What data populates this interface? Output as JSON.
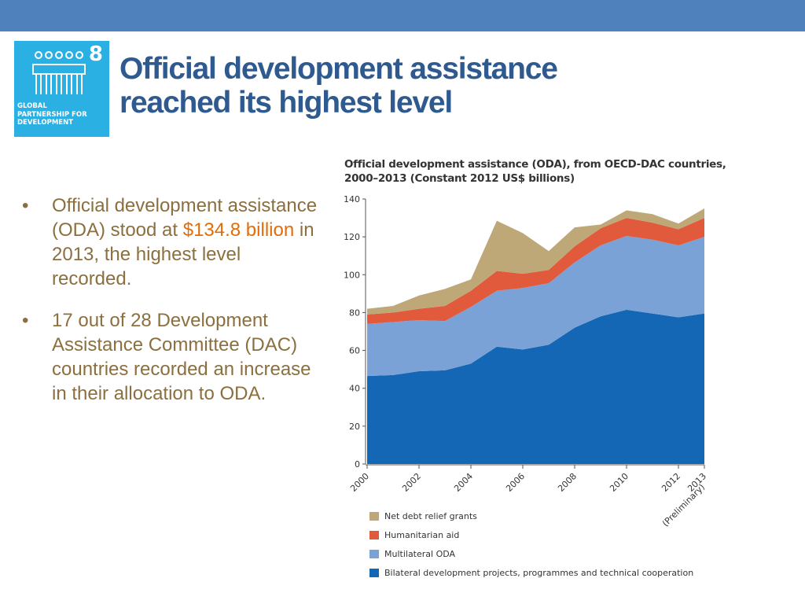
{
  "slide": {
    "goal": {
      "number": "8",
      "text": "GLOBAL\nPARTNERSHIP FOR\nDEVELOPMENT"
    },
    "title": "Official development assistance reached its highest level",
    "bullets": [
      {
        "before": "Official development assistance (ODA) stood at ",
        "highlight": "$134.8 billion",
        "after": " in 2013, the highest level recorded."
      },
      {
        "text": "17 out of 28 Development Assistance Committee (DAC) countries recorded an increase in their allocation to ODA."
      }
    ],
    "bullet_glyph": "•"
  },
  "colors": {
    "topbar": "#4f81bd",
    "title": "#2e5a8f",
    "body_text": "#8b6f3f",
    "highlight": "#e36c0a",
    "logo_bg": "#2bb0e3"
  },
  "chart_data": {
    "type": "area",
    "stacked": true,
    "title": "Official development assistance (ODA), from OECD-DAC countries,\n2000–2013 (Constant 2012 US$ billions)",
    "x": [
      2000,
      2001,
      2002,
      2003,
      2004,
      2005,
      2006,
      2007,
      2008,
      2009,
      2010,
      2011,
      2012,
      2013
    ],
    "x_tick_labels": [
      "2000",
      "2002",
      "2004",
      "2006",
      "2008",
      "2010",
      "2012",
      "2013"
    ],
    "x_tick_values": [
      2000,
      2002,
      2004,
      2006,
      2008,
      2010,
      2012,
      2013
    ],
    "x_note": "(Preliminary)",
    "ylim": [
      0,
      140
    ],
    "y_ticks": [
      0,
      20,
      40,
      60,
      80,
      100,
      120,
      140
    ],
    "series": [
      {
        "name": "Bilateral development projects, programmes and technical cooperation",
        "color": "#1467b5",
        "values": [
          46.5,
          47,
          49,
          49.5,
          53,
          62,
          60.5,
          63,
          72,
          78,
          81.5,
          79.5,
          77.5,
          79.5
        ]
      },
      {
        "name": "Multilateral ODA",
        "color": "#7aa2d6",
        "values": [
          27.5,
          28,
          27,
          26,
          30,
          29.5,
          32.5,
          32.5,
          34.5,
          37.5,
          39,
          39,
          38,
          40.5
        ]
      },
      {
        "name": "Humanitarian aid",
        "color": "#e15a3c",
        "values": [
          5,
          5,
          6,
          8,
          8.5,
          10.5,
          7.5,
          7,
          8.5,
          9,
          9.5,
          9,
          8.5,
          10
        ]
      },
      {
        "name": "Net debt relief grants",
        "color": "#bfa878",
        "values": [
          3,
          3.5,
          7,
          9,
          6,
          26.5,
          21.5,
          10,
          10,
          2,
          4,
          4.5,
          3,
          5
        ]
      }
    ],
    "legend_order": [
      3,
      2,
      1,
      0
    ],
    "legend_position": "bottom-left"
  }
}
